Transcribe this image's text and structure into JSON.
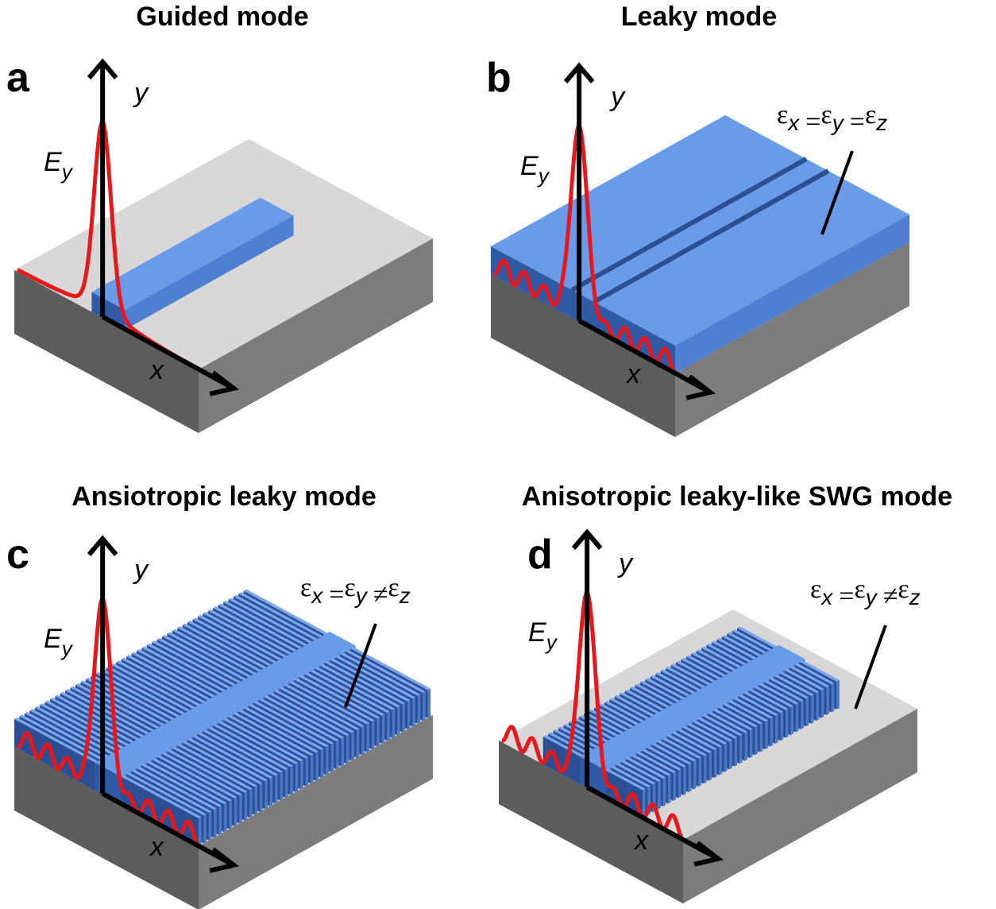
{
  "panels": [
    {
      "letter": "a",
      "title": "Guided mode",
      "field_label": {
        "base": "E",
        "sub": "y"
      },
      "x_axis": "x",
      "y_axis": "y"
    },
    {
      "letter": "b",
      "title": "Leaky mode",
      "field_label": {
        "base": "E",
        "sub": "y"
      },
      "x_axis": "x",
      "y_axis": "y",
      "permittivity": {
        "terms": [
          {
            "base": "ε",
            "sub": "x"
          },
          {
            "base": "ε",
            "sub": "y"
          },
          {
            "base": "ε",
            "sub": "z"
          }
        ],
        "operators": [
          "=",
          "="
        ]
      }
    },
    {
      "letter": "c",
      "title": "Ansiotropic leaky mode",
      "field_label": {
        "base": "E",
        "sub": "y"
      },
      "x_axis": "x",
      "y_axis": "y",
      "permittivity": {
        "terms": [
          {
            "base": "ε",
            "sub": "x"
          },
          {
            "base": "ε",
            "sub": "y"
          },
          {
            "base": "ε",
            "sub": "z"
          }
        ],
        "operators": [
          "=",
          "≠"
        ]
      }
    },
    {
      "letter": "d",
      "title": "Anisotropic leaky-like SWG mode",
      "field_label": {
        "base": "E",
        "sub": "y"
      },
      "x_axis": "x",
      "y_axis": "y",
      "permittivity": {
        "terms": [
          {
            "base": "ε",
            "sub": "x"
          },
          {
            "base": "ε",
            "sub": "y"
          },
          {
            "base": "ε",
            "sub": "z"
          }
        ],
        "operators": [
          "=",
          "≠"
        ]
      }
    }
  ]
}
